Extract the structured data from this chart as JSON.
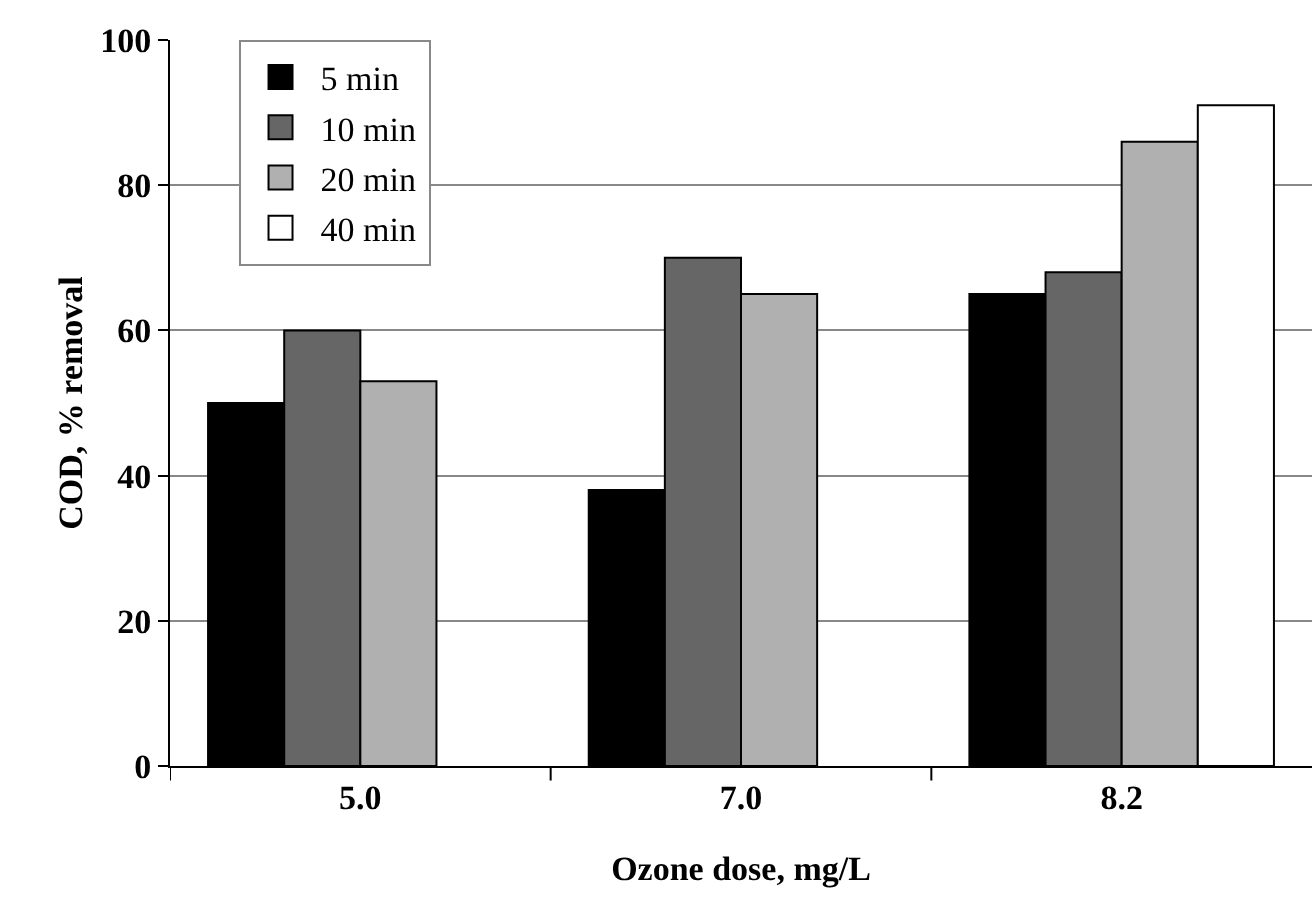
{
  "chart_data": {
    "type": "bar",
    "xlabel": "Ozone dose, mg/L",
    "ylabel": "COD, % removal",
    "categories": [
      "5.0",
      "7.0",
      "8.2"
    ],
    "series": [
      {
        "name": "5 min",
        "color": "#000000",
        "values": [
          50,
          38,
          65
        ]
      },
      {
        "name": "10 min",
        "color": "#666666",
        "values": [
          60,
          70,
          68
        ]
      },
      {
        "name": "20 min",
        "color": "#b0b0b0",
        "values": [
          53,
          65,
          86
        ]
      },
      {
        "name": "40 min",
        "color": "#ffffff",
        "values": [
          null,
          null,
          91
        ]
      }
    ],
    "ylim": [
      0,
      100
    ],
    "yticks": [
      0,
      20,
      40,
      60,
      80,
      100
    ],
    "grid": "y",
    "legend": "top left"
  }
}
